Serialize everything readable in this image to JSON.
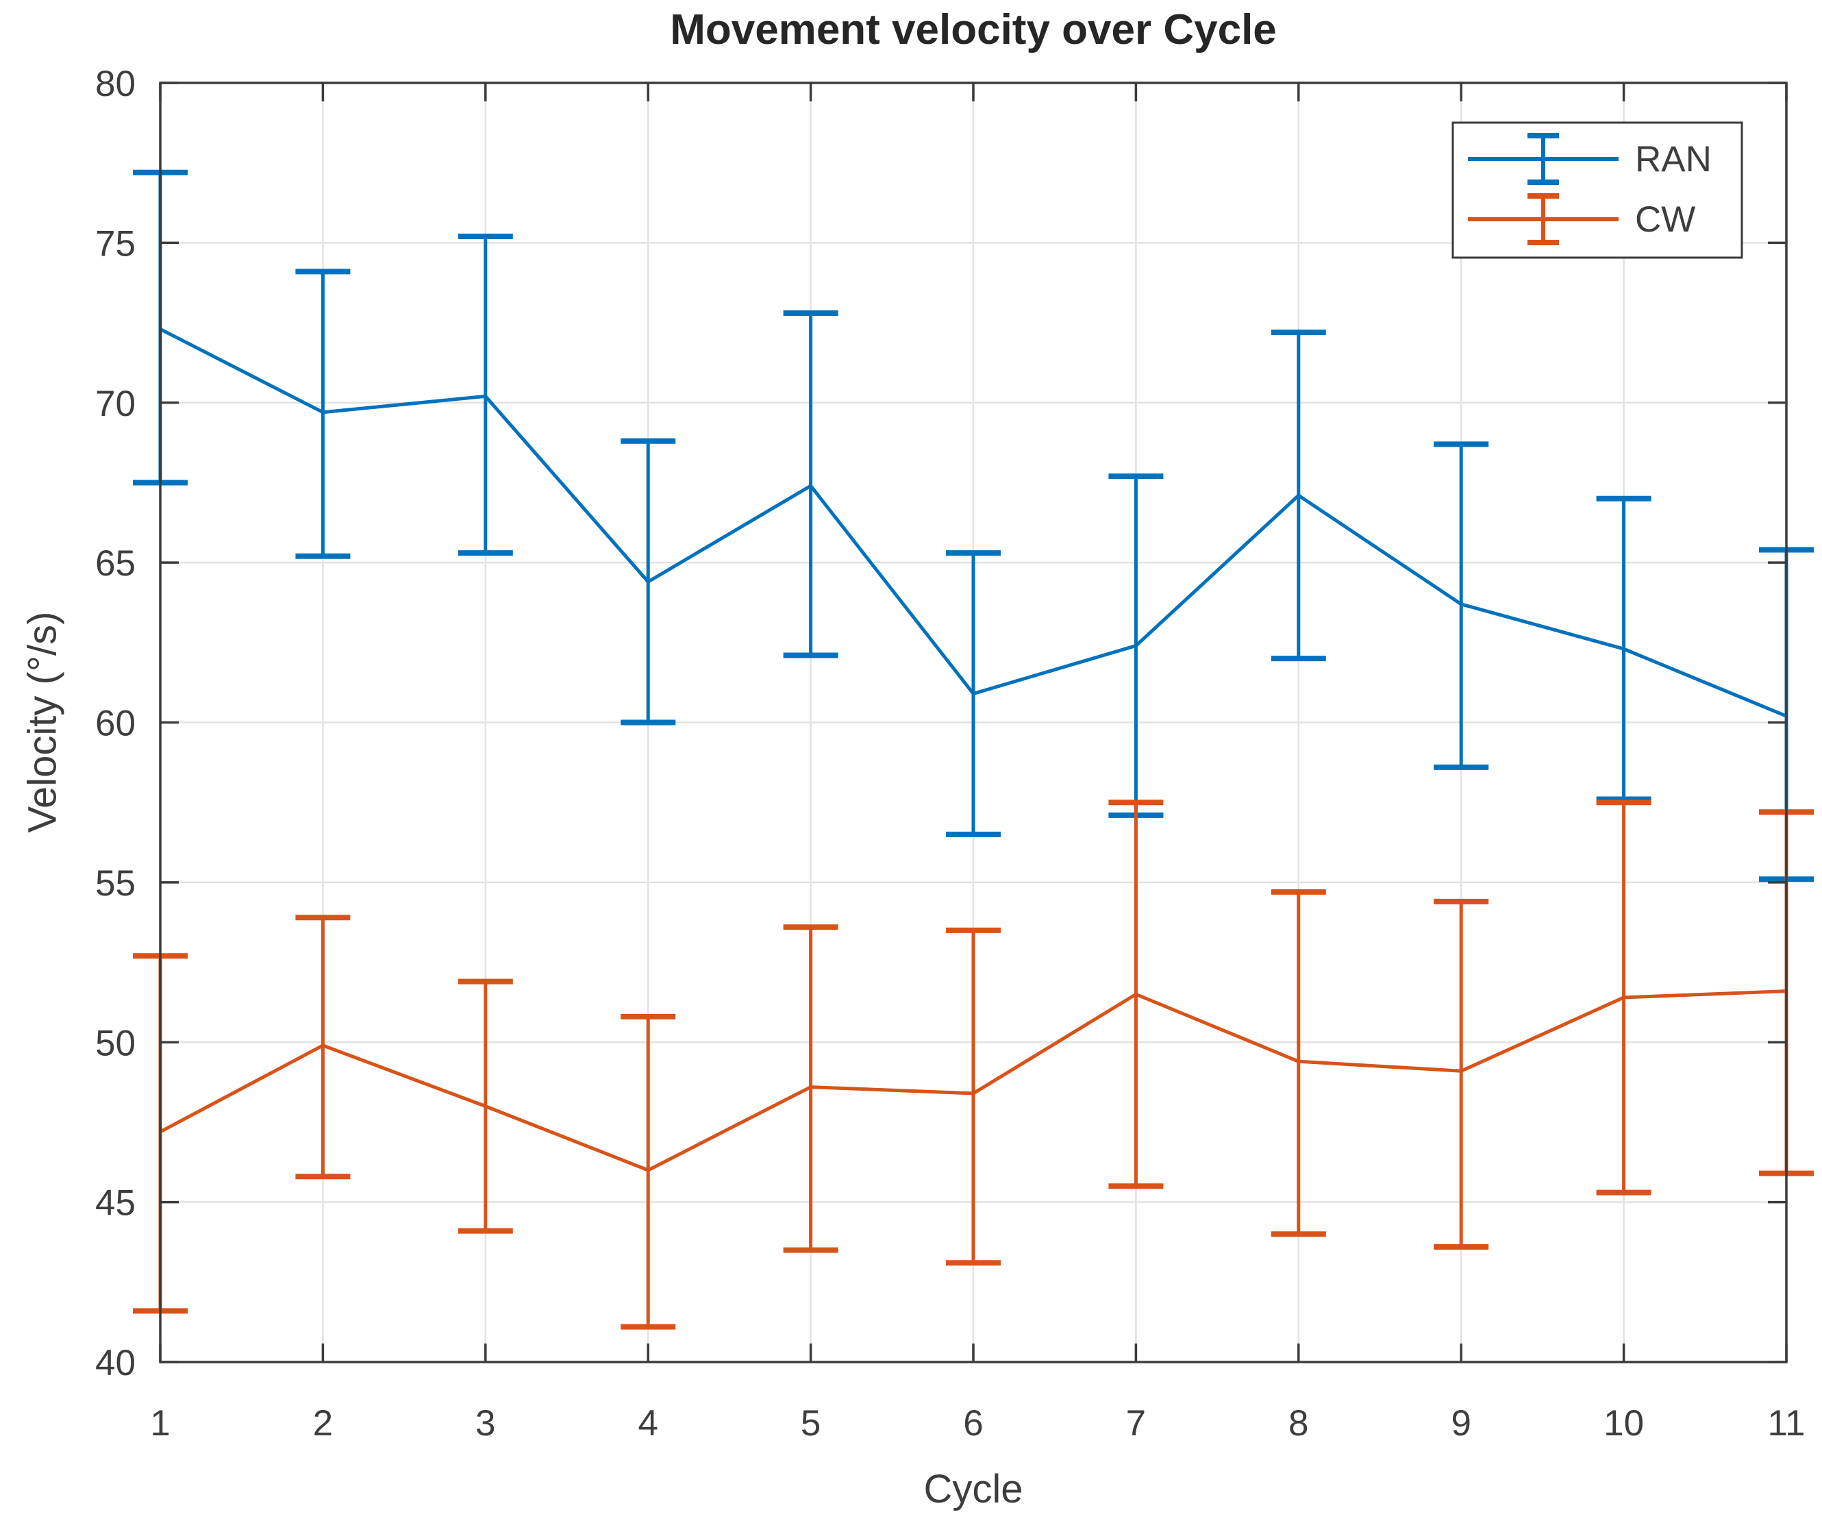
{
  "figure": {
    "title": "Movement velocity over Cycle",
    "xlabel": "Cycle",
    "ylabel": "Velocity (°/s)"
  },
  "chart_data": {
    "type": "line",
    "title": "Movement velocity over Cycle",
    "xlabel": "Cycle",
    "ylabel": "Velocity (°/s)",
    "x": [
      1,
      2,
      3,
      4,
      5,
      6,
      7,
      8,
      9,
      10,
      11
    ],
    "xlim": [
      1,
      11
    ],
    "ylim": [
      40,
      80
    ],
    "xticks": [
      1,
      2,
      3,
      4,
      5,
      6,
      7,
      8,
      9,
      10,
      11
    ],
    "yticks": [
      40,
      45,
      50,
      55,
      60,
      65,
      70,
      75,
      80
    ],
    "grid": true,
    "legend_position": "top-right",
    "legend_entries": [
      "RAN",
      "CW"
    ],
    "series": [
      {
        "name": "RAN",
        "color": "#0072BD",
        "values": [
          72.3,
          69.7,
          70.2,
          64.4,
          67.4,
          60.9,
          62.4,
          67.1,
          63.7,
          62.3,
          60.2
        ],
        "error_low": [
          67.5,
          65.2,
          65.3,
          60.0,
          62.1,
          56.5,
          57.1,
          62.0,
          58.6,
          57.6,
          55.1
        ],
        "error_high": [
          77.2,
          74.1,
          75.2,
          68.8,
          72.8,
          65.3,
          67.7,
          72.2,
          68.7,
          67.0,
          65.4
        ]
      },
      {
        "name": "CW",
        "color": "#D95319",
        "values": [
          47.2,
          49.9,
          48.0,
          46.0,
          48.6,
          48.4,
          51.5,
          49.4,
          49.1,
          51.4,
          51.6
        ],
        "error_low": [
          41.6,
          45.8,
          44.1,
          41.1,
          43.5,
          43.1,
          45.5,
          44.0,
          43.6,
          45.3,
          45.9
        ],
        "error_high": [
          52.7,
          53.9,
          51.9,
          50.8,
          53.6,
          53.5,
          57.5,
          54.7,
          54.4,
          57.5,
          57.2
        ]
      }
    ],
    "colors": {
      "axis": "#3b3b3b",
      "grid": "#e2e2e2",
      "text": "#3d3d3d",
      "background": "#ffffff"
    }
  }
}
